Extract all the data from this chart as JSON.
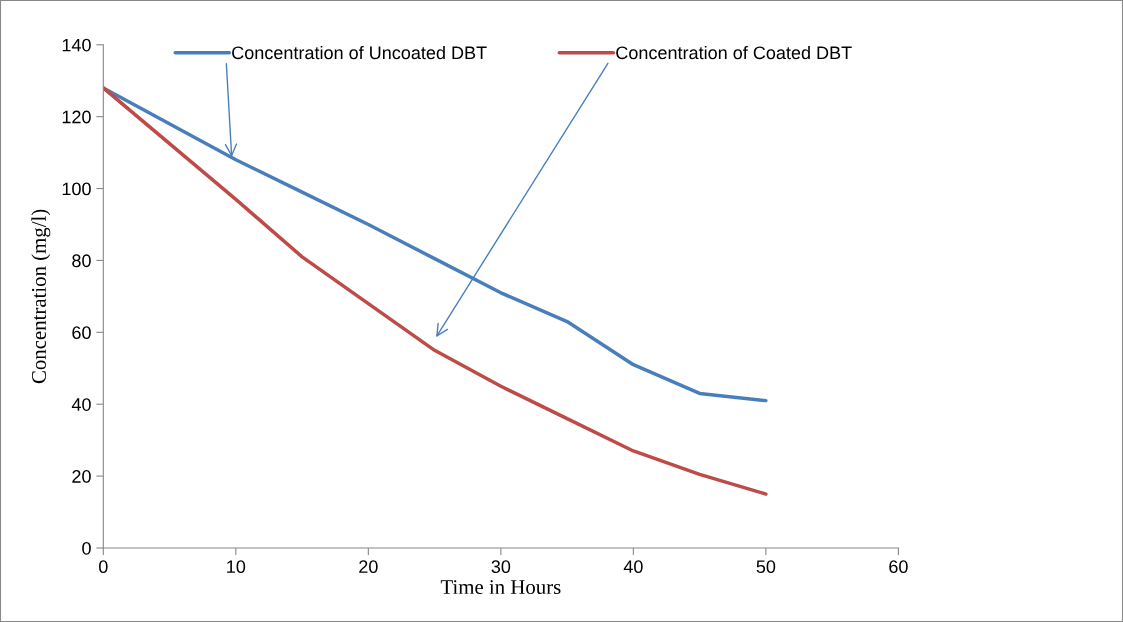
{
  "chart_data": {
    "type": "line",
    "xlabel": "Time in Hours",
    "ylabel": "Concentration (mg/l)",
    "x": [
      0,
      10,
      15,
      20,
      25,
      30,
      35,
      40,
      45,
      50
    ],
    "series": [
      {
        "name": "Concentration of Uncoated DBT",
        "color": "#4a7ebb",
        "values": [
          128,
          108,
          99,
          90,
          80.5,
          71,
          63,
          51,
          43,
          41
        ]
      },
      {
        "name": "Concentration of Coated DBT",
        "color": "#be4b48",
        "values": [
          128,
          97,
          81,
          68,
          55,
          45,
          36,
          27,
          20.5,
          15
        ]
      }
    ],
    "xlim": [
      0,
      60
    ],
    "xticks": [
      0,
      10,
      20,
      30,
      40,
      50,
      60
    ],
    "ylim": [
      0,
      140
    ],
    "yticks": [
      0,
      20,
      40,
      60,
      80,
      100,
      120,
      140
    ],
    "grid": false,
    "legend": "top",
    "marker": "none",
    "line_style": "solid"
  }
}
